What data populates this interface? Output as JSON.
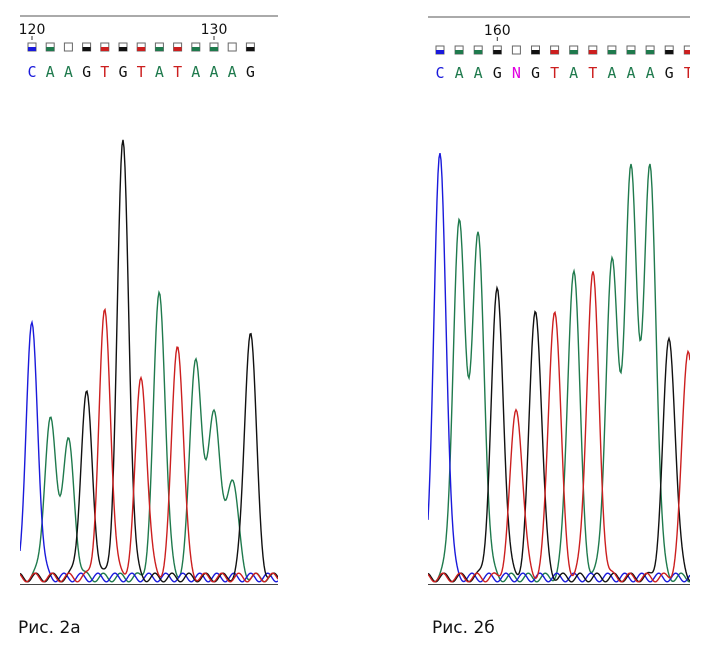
{
  "colors": {
    "A": "#1f7a4d",
    "C": "#1a1adb",
    "G": "#111111",
    "T": "#cc1f1f",
    "N": "#e000e0"
  },
  "figures": [
    {
      "id": "fig-2a",
      "caption": "Рис. 2а"
    },
    {
      "id": "fig-2b",
      "caption": "Рис. 2б"
    }
  ],
  "chart_data": [
    {
      "type": "line",
      "title": "",
      "xlabel": "",
      "ylabel": "",
      "ruler_ticks": [
        {
          "position": 120,
          "label": "120"
        },
        {
          "position": 130,
          "label": "130"
        }
      ],
      "sequence": [
        "C",
        "A",
        "A",
        "G",
        "T",
        "G",
        "T",
        "A",
        "T",
        "A",
        "A",
        "A",
        "G"
      ],
      "quality_boxes": [
        "C",
        "A",
        "A",
        "G",
        "T",
        "G",
        "T",
        "A",
        "T",
        "A",
        "A",
        "A",
        "G"
      ],
      "quality_filled": [
        true,
        true,
        false,
        true,
        true,
        true,
        true,
        true,
        true,
        true,
        true,
        false,
        true
      ],
      "peak_heights": [
        0.58,
        0.36,
        0.31,
        0.42,
        0.61,
        1.0,
        0.46,
        0.66,
        0.54,
        0.51,
        0.39,
        0.23,
        0.57
      ],
      "ylim": [
        0,
        1.05
      ]
    },
    {
      "type": "line",
      "title": "",
      "xlabel": "",
      "ylabel": "",
      "ruler_ticks": [
        {
          "position": 160,
          "label": "160"
        }
      ],
      "sequence": [
        "C",
        "A",
        "A",
        "G",
        "N",
        "G",
        "T",
        "A",
        "T",
        "A",
        "A",
        "A",
        "G",
        "T"
      ],
      "quality_boxes": [
        "C",
        "A",
        "A",
        "G",
        "N",
        "G",
        "T",
        "A",
        "T",
        "A",
        "A",
        "A",
        "G",
        "T"
      ],
      "quality_filled": [
        true,
        true,
        true,
        true,
        false,
        true,
        true,
        true,
        true,
        true,
        true,
        true,
        true,
        true
      ],
      "peak_heights": [
        0.97,
        0.81,
        0.78,
        0.66,
        0.42,
        0.62,
        0.62,
        0.71,
        0.7,
        0.72,
        0.93,
        0.94,
        0.55,
        0.53
      ],
      "secondary_peaks": [
        {
          "index": 4,
          "base": "T",
          "height": 0.39
        }
      ],
      "ylim": [
        0,
        1.05
      ]
    }
  ]
}
